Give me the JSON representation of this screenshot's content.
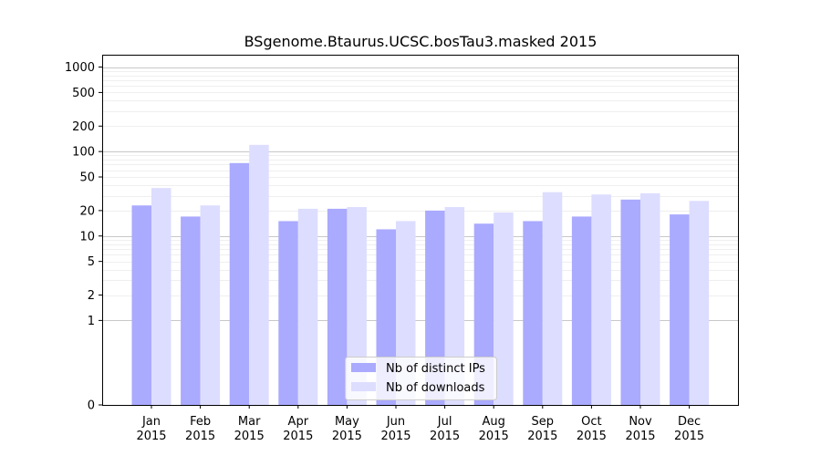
{
  "chart_data": {
    "type": "bar",
    "title": "BSgenome.Btaurus.UCSC.bosTau3.masked 2015",
    "xlabel": "",
    "ylabel": "",
    "y_scale": "symlog",
    "y_ticks": [
      "0",
      "1",
      "2",
      "5",
      "10",
      "20",
      "50",
      "100",
      "200",
      "500",
      "1000"
    ],
    "categories": [
      [
        "Jan",
        "2015"
      ],
      [
        "Feb",
        "2015"
      ],
      [
        "Mar",
        "2015"
      ],
      [
        "Apr",
        "2015"
      ],
      [
        "May",
        "2015"
      ],
      [
        "Jun",
        "2015"
      ],
      [
        "Jul",
        "2015"
      ],
      [
        "Aug",
        "2015"
      ],
      [
        "Sep",
        "2015"
      ],
      [
        "Oct",
        "2015"
      ],
      [
        "Nov",
        "2015"
      ],
      [
        "Dec",
        "2015"
      ]
    ],
    "series": [
      {
        "name": "Nb of distinct IPs",
        "color": "#aaaaff",
        "values": [
          23,
          17,
          73,
          15,
          21,
          12,
          20,
          14,
          15,
          17,
          27,
          18
        ]
      },
      {
        "name": "Nb of downloads",
        "color": "#ddddff",
        "values": [
          37,
          23,
          120,
          21,
          22,
          15,
          22,
          19,
          33,
          31,
          32,
          26
        ]
      }
    ],
    "grid": true,
    "legend_position": "lower center"
  }
}
